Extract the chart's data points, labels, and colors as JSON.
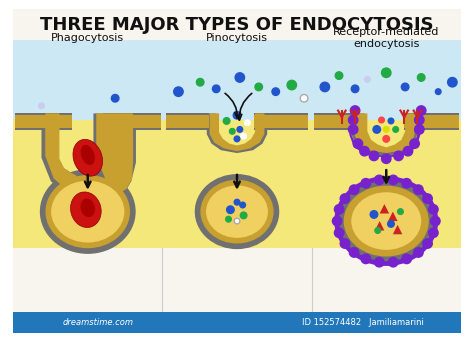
{
  "title": "THREE MAJOR TYPES OF ENDOCYTOSIS",
  "labels": [
    "Phagocytosis",
    "Pinocytosis",
    "Receptor-mediated\nendocytosis"
  ],
  "bg_color": "#f5f0e8",
  "membrane_color": "#c8a83c",
  "membrane_dark": "#8a7020",
  "membrane_gray": "#808080",
  "cell_interior_color": "#f0e890",
  "extracellular_bg": "#d0eaf8",
  "red_cell_color": "#cc1111",
  "blue_dot": "#2255cc",
  "green_dot": "#22aa44",
  "white_dot": "#ffffff",
  "purple_dot": "#7722cc",
  "red_triangle": "#cc2222",
  "arrow_color": "#111111",
  "watermark_color": "#888888",
  "watermark": "dreamstime.com",
  "watermark2": "ID 152574482   Jamiliamarini",
  "title_fontsize": 13,
  "label_fontsize": 8,
  "figsize": [
    4.74,
    3.42
  ],
  "dpi": 100
}
